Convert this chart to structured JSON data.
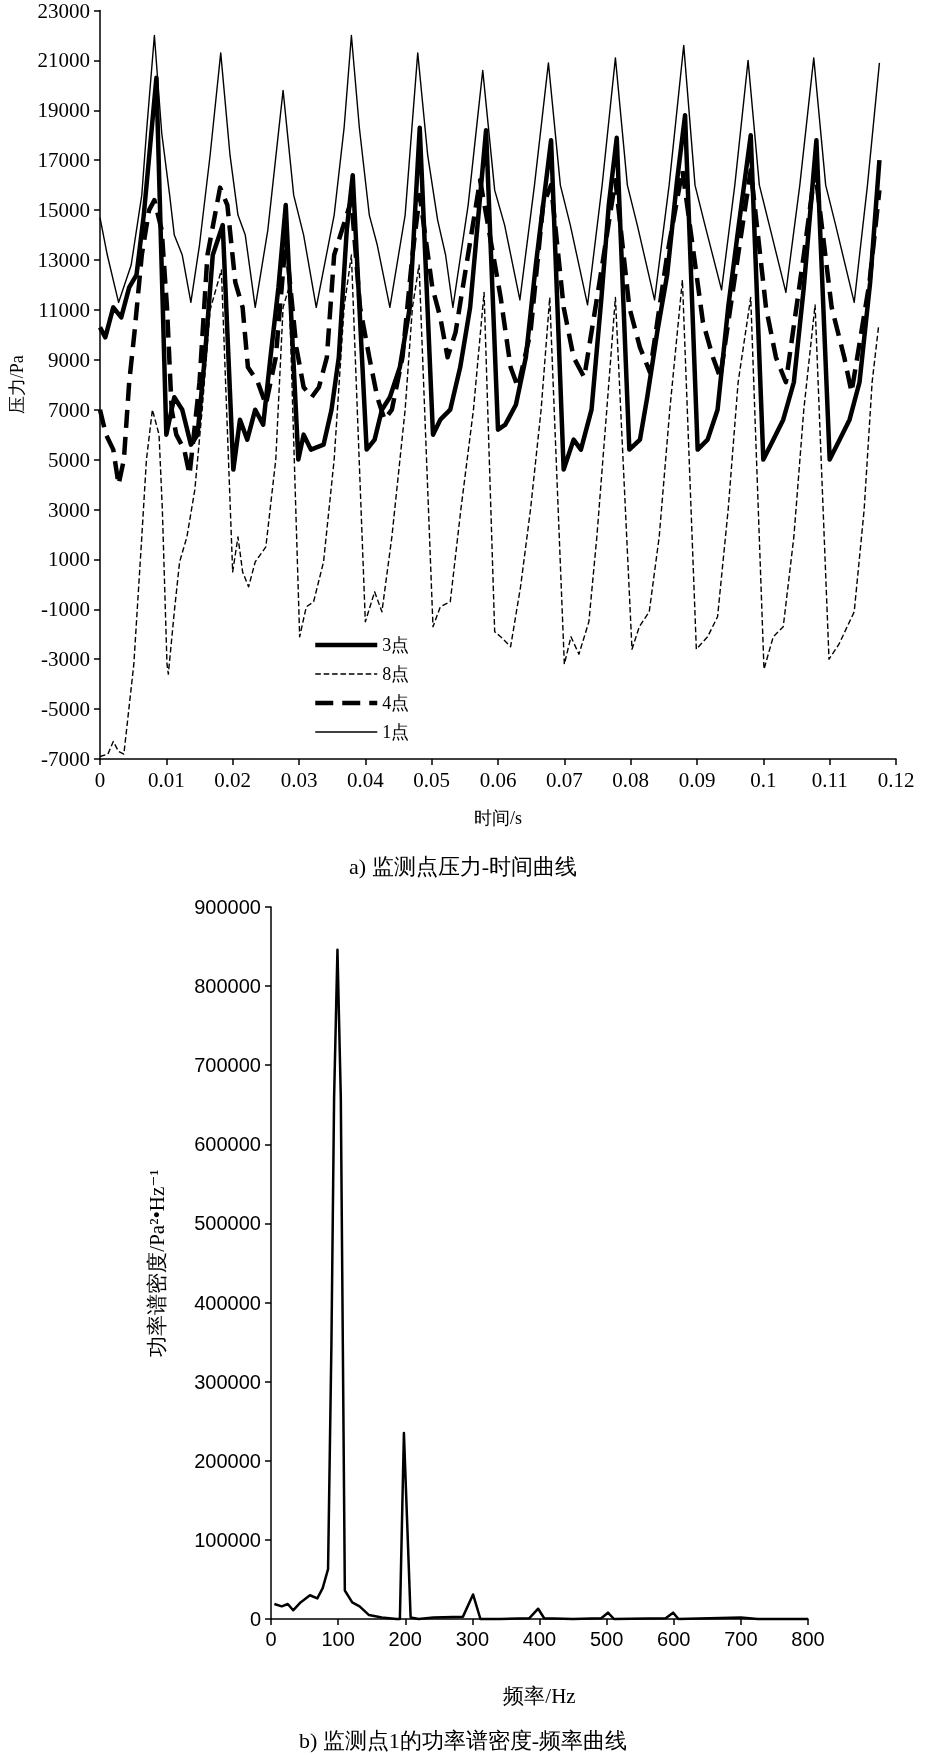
{
  "chart_data": [
    {
      "type": "line",
      "title": "a) 监测点压力-时间曲线",
      "xlabel": "时间/s",
      "ylabel": "压力/Pa",
      "xlim": [
        0,
        0.12
      ],
      "xticks": [
        0,
        0.01,
        0.02,
        0.03,
        0.04,
        0.05,
        0.06,
        0.07,
        0.08,
        0.09,
        0.1,
        0.11,
        0.12
      ],
      "ylim": [
        -7000,
        23000
      ],
      "yticks": [
        -7000,
        -5000,
        -3000,
        -1000,
        1000,
        3000,
        5000,
        7000,
        9000,
        11000,
        13000,
        15000,
        17000,
        19000,
        21000,
        23000
      ],
      "legend": "bottom left",
      "series": [
        {
          "name": "3点",
          "color": "#000000",
          "line_style": "solid",
          "x": [
            0,
            0.0008,
            0.002,
            0.0032,
            0.0044,
            0.0055,
            0.0066,
            0.0085,
            0.01,
            0.0112,
            0.0124,
            0.0137,
            0.0147,
            0.0158,
            0.017,
            0.0185,
            0.0201,
            0.0211,
            0.0222,
            0.0234,
            0.0246,
            0.0257,
            0.0269,
            0.028,
            0.0299,
            0.0307,
            0.0318,
            0.0337,
            0.0349,
            0.036,
            0.0372,
            0.0381,
            0.0402,
            0.0414,
            0.0425,
            0.0437,
            0.0452,
            0.0467,
            0.0482,
            0.0502,
            0.0513,
            0.0528,
            0.0543,
            0.0558,
            0.0582,
            0.06,
            0.0611,
            0.0627,
            0.0642,
            0.0657,
            0.068,
            0.0699,
            0.0714,
            0.0725,
            0.0741,
            0.0756,
            0.0767,
            0.0779,
            0.0798,
            0.0814,
            0.0825,
            0.084,
            0.0855,
            0.087,
            0.0882,
            0.0901,
            0.0916,
            0.0931,
            0.0947,
            0.0962,
            0.0981,
            0.1,
            0.1015,
            0.103,
            0.1046,
            0.1061,
            0.108,
            0.11,
            0.1115,
            0.113,
            0.1145,
            0.1161,
            0.1175
          ],
          "values": [
            10300,
            9900,
            11100,
            10700,
            11900,
            12400,
            14800,
            20300,
            6000,
            7500,
            7000,
            5600,
            6000,
            9100,
            13200,
            14400,
            4600,
            6600,
            5800,
            7000,
            6400,
            9100,
            11900,
            15200,
            5000,
            6000,
            5400,
            5600,
            7000,
            9100,
            14200,
            16400,
            5400,
            5800,
            7000,
            7500,
            8700,
            11100,
            18300,
            6000,
            6600,
            7000,
            8700,
            11100,
            18200,
            6200,
            6400,
            7200,
            9100,
            12800,
            17800,
            4600,
            5800,
            5400,
            7000,
            11500,
            15200,
            17900,
            5400,
            5800,
            7500,
            10100,
            12400,
            16200,
            18800,
            5400,
            5800,
            7000,
            11100,
            14200,
            18000,
            5000,
            5800,
            6600,
            8100,
            11900,
            17800,
            5000,
            5800,
            6600,
            8100,
            12100,
            17000
          ]
        },
        {
          "name": "8点",
          "color": "#000000",
          "line_style": "dashed",
          "x": [
            0,
            0.0012,
            0.002,
            0.0028,
            0.0036,
            0.0051,
            0.0063,
            0.007,
            0.0079,
            0.0089,
            0.0094,
            0.0101,
            0.0103,
            0.0112,
            0.012,
            0.0131,
            0.0143,
            0.0154,
            0.0166,
            0.0183,
            0.02,
            0.0208,
            0.0215,
            0.0224,
            0.0234,
            0.025,
            0.0265,
            0.0276,
            0.0285,
            0.0301,
            0.0311,
            0.0322,
            0.0337,
            0.0353,
            0.0368,
            0.0379,
            0.04,
            0.0414,
            0.0425,
            0.044,
            0.046,
            0.0471,
            0.0481,
            0.0502,
            0.0513,
            0.0528,
            0.0544,
            0.0563,
            0.0579,
            0.0595,
            0.0604,
            0.0619,
            0.0634,
            0.0649,
            0.0665,
            0.0678,
            0.07,
            0.071,
            0.0722,
            0.0737,
            0.0749,
            0.0764,
            0.0777,
            0.0802,
            0.0813,
            0.0828,
            0.0843,
            0.0859,
            0.0878,
            0.0899,
            0.0916,
            0.0931,
            0.0947,
            0.0962,
            0.0981,
            0.1001,
            0.1015,
            0.103,
            0.1046,
            0.1061,
            0.1078,
            0.1099,
            0.1114,
            0.1137,
            0.1152,
            0.1164,
            0.1174
          ],
          "values": [
            -6900,
            -6800,
            -6300,
            -6700,
            -6800,
            -3200,
            1900,
            5000,
            7000,
            6000,
            3000,
            -3200,
            -3600,
            -1100,
            900,
            1900,
            3800,
            7000,
            11000,
            12600,
            500,
            1900,
            500,
            -100,
            900,
            1500,
            5000,
            11100,
            11900,
            -2100,
            -900,
            -700,
            900,
            5000,
            11100,
            13200,
            -1500,
            -300,
            -1100,
            1900,
            7000,
            11100,
            12800,
            -1700,
            -900,
            -700,
            3000,
            7000,
            11700,
            -1900,
            -2100,
            -2500,
            -100,
            3000,
            7000,
            11500,
            -3200,
            -2100,
            -2800,
            -1500,
            1900,
            7000,
            11500,
            -2600,
            -1700,
            -1100,
            1900,
            7000,
            12200,
            -2600,
            -2100,
            -1300,
            3000,
            8100,
            11500,
            -3400,
            -2100,
            -1700,
            1900,
            7000,
            11200,
            -3000,
            -2400,
            -1100,
            3000,
            8100,
            10400
          ]
        },
        {
          "name": "4点",
          "color": "#000000",
          "line_style": "dashed",
          "x": [
            0,
            0.0009,
            0.002,
            0.0028,
            0.0036,
            0.0044,
            0.0052,
            0.0063,
            0.0074,
            0.0082,
            0.0093,
            0.0101,
            0.0108,
            0.0115,
            0.0127,
            0.0135,
            0.015,
            0.0162,
            0.0181,
            0.0192,
            0.0204,
            0.0215,
            0.0223,
            0.0238,
            0.025,
            0.0265,
            0.028,
            0.0296,
            0.0307,
            0.0319,
            0.033,
            0.0342,
            0.0353,
            0.0379,
            0.0392,
            0.0406,
            0.0418,
            0.0429,
            0.044,
            0.0456,
            0.0471,
            0.0482,
            0.0501,
            0.0513,
            0.0524,
            0.0536,
            0.0573,
            0.0604,
            0.0619,
            0.063,
            0.0649,
            0.0668,
            0.068,
            0.0699,
            0.0714,
            0.073,
            0.0753,
            0.0777,
            0.0798,
            0.0814,
            0.0829,
            0.0855,
            0.0878,
            0.0909,
            0.0924,
            0.0935,
            0.0962,
            0.0981,
            0.1004,
            0.1019,
            0.1034,
            0.1061,
            0.1078,
            0.1103,
            0.1122,
            0.1133,
            0.116,
            0.1175
          ],
          "values": [
            7000,
            6000,
            5400,
            4000,
            5000,
            8100,
            10100,
            13200,
            15000,
            15400,
            14200,
            11100,
            7000,
            6000,
            5400,
            4400,
            8100,
            13200,
            15900,
            15200,
            12100,
            11100,
            8700,
            8100,
            7200,
            9100,
            13800,
            9500,
            7900,
            7500,
            7900,
            9100,
            13200,
            15400,
            11100,
            9100,
            7500,
            6600,
            7000,
            9100,
            13200,
            15600,
            11900,
            10700,
            9100,
            10100,
            16200,
            11500,
            8700,
            7900,
            10100,
            15200,
            16000,
            11100,
            9100,
            8300,
            12100,
            16200,
            11100,
            9500,
            8500,
            13200,
            16600,
            10500,
            9100,
            8300,
            13200,
            16600,
            11100,
            9100,
            8100,
            13200,
            16600,
            11100,
            9100,
            7700,
            12100,
            15800
          ]
        },
        {
          "name": "1点",
          "color": "#000000",
          "line_style": "solid",
          "x": [
            0,
            0.0011,
            0.0028,
            0.0047,
            0.0063,
            0.007,
            0.0082,
            0.0093,
            0.0105,
            0.0112,
            0.0124,
            0.0137,
            0.015,
            0.0166,
            0.0182,
            0.0196,
            0.0208,
            0.0219,
            0.0234,
            0.0253,
            0.0276,
            0.0292,
            0.0307,
            0.0326,
            0.0353,
            0.0368,
            0.0379,
            0.0391,
            0.0406,
            0.0418,
            0.0437,
            0.046,
            0.0479,
            0.0494,
            0.0509,
            0.0521,
            0.0532,
            0.0555,
            0.0577,
            0.0595,
            0.061,
            0.0633,
            0.0655,
            0.0676,
            0.0694,
            0.0709,
            0.0735,
            0.0757,
            0.0777,
            0.0795,
            0.081,
            0.0836,
            0.0858,
            0.088,
            0.0897,
            0.0912,
            0.0937,
            0.0957,
            0.0977,
            0.0994,
            0.1009,
            0.1034,
            0.1055,
            0.1076,
            0.1094,
            0.1109,
            0.1137,
            0.1157,
            0.1175
          ],
          "values": [
            14700,
            13200,
            11300,
            12800,
            15600,
            18100,
            22000,
            18100,
            15600,
            14000,
            13200,
            11300,
            13600,
            17200,
            21300,
            17200,
            14800,
            14000,
            11100,
            14200,
            19800,
            15600,
            14000,
            11100,
            14800,
            18300,
            22000,
            18300,
            14800,
            13600,
            11100,
            14800,
            21300,
            17200,
            14600,
            13200,
            11100,
            15200,
            20600,
            15800,
            14400,
            11400,
            16000,
            20900,
            16000,
            14400,
            11200,
            16000,
            21100,
            16000,
            14400,
            11400,
            16000,
            21600,
            16000,
            14400,
            11800,
            16000,
            21000,
            16000,
            14400,
            11700,
            16000,
            21100,
            16000,
            14400,
            11300,
            16000,
            20900
          ]
        }
      ]
    },
    {
      "type": "line",
      "title": "b) 监测点1的功率谱密度-频率曲线",
      "xlabel": "频率/Hz",
      "ylabel": "功率谱密度/Pa²•Hz⁻¹",
      "xlim": [
        0,
        800
      ],
      "xticks": [
        0,
        100,
        200,
        300,
        400,
        500,
        600,
        700,
        800
      ],
      "ylim": [
        0,
        900000
      ],
      "yticks": [
        0,
        100000,
        200000,
        300000,
        400000,
        500000,
        600000,
        700000,
        800000,
        900000
      ],
      "series": [
        {
          "color": "#000000",
          "x": [
            5,
            16,
            25,
            33,
            44,
            58,
            69,
            77,
            85,
            90,
            94,
            99,
            104,
            107,
            110,
            121,
            132,
            146,
            165,
            187,
            192,
            198,
            208,
            220,
            242,
            286,
            301,
            312,
            341,
            385,
            398,
            407,
            450,
            492,
            502,
            511,
            588,
            599,
            607,
            700,
            725,
            800
          ],
          "values": [
            19000,
            16000,
            19000,
            11000,
            21000,
            30000,
            26000,
            39000,
            63000,
            347000,
            659000,
            846000,
            659000,
            347000,
            36000,
            21000,
            16000,
            5000,
            2000,
            0,
            0,
            235000,
            2000,
            0,
            2000,
            3000,
            31000,
            0,
            0,
            1000,
            13000,
            1000,
            0,
            1000,
            8000,
            0,
            1000,
            8000,
            0,
            2000,
            0,
            0
          ]
        }
      ]
    }
  ]
}
